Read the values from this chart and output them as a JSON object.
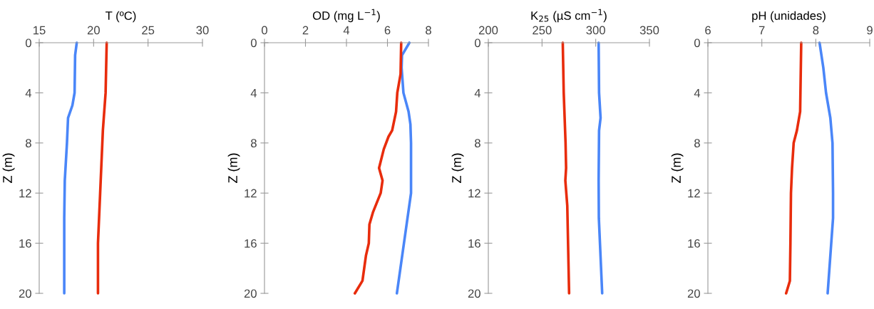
{
  "chart_data": [
    {
      "type": "line",
      "orientation": "horizontal",
      "xlabel": "T (ºC)",
      "ylabel": "Z (m)",
      "xlim": [
        15,
        30
      ],
      "xticks": [
        15,
        20,
        25,
        30
      ],
      "ylim": [
        20,
        0
      ],
      "yticks": [
        0,
        4,
        8,
        12,
        16,
        20
      ],
      "series": [
        {
          "color": "#4a86f8",
          "x": [
            0,
            1,
            4,
            5,
            6,
            8,
            11,
            14,
            20
          ],
          "values": [
            18.45,
            18.3,
            18.25,
            18.05,
            17.65,
            17.55,
            17.35,
            17.3,
            17.3
          ]
        },
        {
          "color": "#e82c0c",
          "x": [
            0,
            4,
            7,
            12,
            16,
            20
          ],
          "values": [
            21.2,
            21.1,
            20.85,
            20.6,
            20.4,
            20.4
          ]
        }
      ]
    },
    {
      "type": "line",
      "orientation": "horizontal",
      "xlabel": "OD (mg L$^{−1}$)",
      "ylabel": "Z (m)",
      "xlim": [
        0,
        8
      ],
      "xticks": [
        0,
        2,
        4,
        6,
        8
      ],
      "ylim": [
        20,
        0
      ],
      "yticks": [
        0,
        4,
        8,
        12,
        16,
        20
      ],
      "series": [
        {
          "color": "#4a86f8",
          "x": [
            0,
            1,
            2,
            4,
            5.5,
            6.5,
            8,
            12,
            20
          ],
          "values": [
            7.07,
            6.71,
            6.69,
            6.78,
            7.03,
            7.12,
            7.15,
            7.15,
            6.46
          ]
        },
        {
          "color": "#e82c0c",
          "x": [
            0,
            2.5,
            4,
            5.5,
            7,
            7.5,
            8.5,
            10,
            11,
            12,
            13.5,
            14.5,
            16,
            17,
            19,
            20
          ],
          "values": [
            6.67,
            6.64,
            6.48,
            6.42,
            6.23,
            6.05,
            5.82,
            5.59,
            5.76,
            5.67,
            5.3,
            5.12,
            5.09,
            4.95,
            4.78,
            4.41
          ]
        }
      ]
    },
    {
      "type": "line",
      "orientation": "horizontal",
      "xlabel": "K$_{25}$ (µS cm$^{−1}$)",
      "ylabel": "Z (m)",
      "xlim": [
        200,
        350
      ],
      "xticks": [
        200,
        250,
        300,
        350
      ],
      "ylim": [
        20,
        0
      ],
      "yticks": [
        0,
        4,
        8,
        12,
        16,
        20
      ],
      "series": [
        {
          "color": "#4a86f8",
          "x": [
            0,
            4,
            6,
            7,
            11,
            14,
            20
          ],
          "values": [
            302.7,
            303.1,
            304.5,
            303.1,
            302.7,
            302.9,
            306
          ]
        },
        {
          "color": "#e82c0c",
          "x": [
            0,
            4,
            8,
            10,
            11,
            13,
            20
          ],
          "values": [
            269.3,
            270.2,
            271.9,
            272.4,
            271.7,
            273.5,
            275.2
          ]
        }
      ]
    },
    {
      "type": "line",
      "orientation": "horizontal",
      "xlabel": "pH (unidades)",
      "ylabel": "Z (m)",
      "xlim": [
        6,
        9
      ],
      "xticks": [
        6,
        7,
        8,
        9
      ],
      "ylim": [
        20,
        0
      ],
      "yticks": [
        0,
        4,
        8,
        12,
        16,
        20
      ],
      "series": [
        {
          "color": "#4a86f8",
          "x": [
            0,
            2,
            4,
            6,
            8,
            12,
            14,
            20
          ],
          "values": [
            8.07,
            8.14,
            8.19,
            8.27,
            8.31,
            8.32,
            8.32,
            8.22
          ]
        },
        {
          "color": "#e82c0c",
          "x": [
            0,
            5.5,
            7,
            8,
            10,
            12,
            16,
            19,
            20
          ],
          "values": [
            7.73,
            7.71,
            7.65,
            7.59,
            7.56,
            7.54,
            7.53,
            7.52,
            7.45
          ]
        }
      ]
    }
  ]
}
